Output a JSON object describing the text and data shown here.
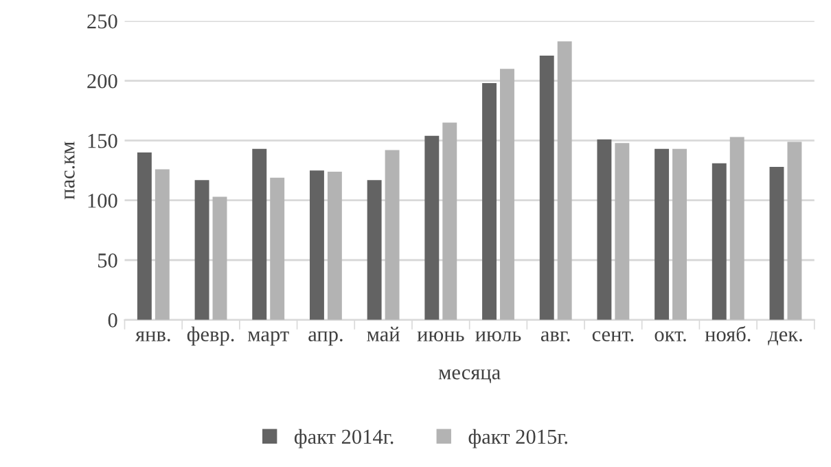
{
  "chart_data": {
    "type": "bar",
    "xlabel": "месяца",
    "ylabel": "пас.км",
    "categories": [
      "янв.",
      "февр.",
      "март",
      "апр.",
      "май",
      "июнь",
      "июль",
      "авг.",
      "сент.",
      "окт.",
      "нояб.",
      "дек."
    ],
    "series": [
      {
        "name": "факт 2014г.",
        "color": "#636363",
        "values": [
          140,
          117,
          143,
          125,
          117,
          154,
          198,
          221,
          151,
          143,
          131,
          128
        ]
      },
      {
        "name": "факт 2015г.",
        "color": "#b3b3b3",
        "values": [
          126,
          103,
          119,
          124,
          142,
          165,
          210,
          233,
          148,
          143,
          153,
          149
        ]
      }
    ],
    "ylim": [
      0,
      250
    ],
    "yticks": [
      0,
      50,
      100,
      150,
      200,
      250
    ],
    "grid": "y",
    "legend": "bottom"
  }
}
